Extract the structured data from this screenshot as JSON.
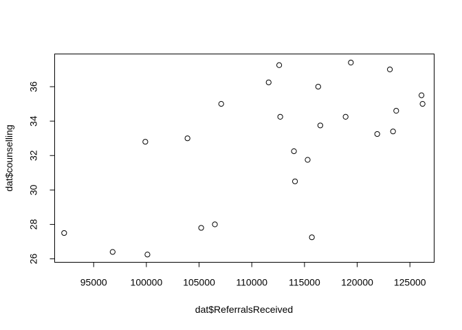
{
  "chart_data": {
    "type": "scatter",
    "title": "",
    "xlabel": "dat$ReferralsReceived",
    "ylabel": "dat$counselling",
    "xlim": [
      91300,
      127300
    ],
    "ylim": [
      25.8,
      37.9
    ],
    "xticks": [
      95000,
      100000,
      105000,
      110000,
      115000,
      120000,
      125000
    ],
    "yticks": [
      26,
      28,
      30,
      32,
      34,
      36
    ],
    "grid": false,
    "points": [
      {
        "x": 92200,
        "y": 27.5
      },
      {
        "x": 96800,
        "y": 26.4
      },
      {
        "x": 99900,
        "y": 32.8
      },
      {
        "x": 100100,
        "y": 26.25
      },
      {
        "x": 103900,
        "y": 33.0
      },
      {
        "x": 105200,
        "y": 27.8
      },
      {
        "x": 106500,
        "y": 28.0
      },
      {
        "x": 107100,
        "y": 35.0
      },
      {
        "x": 111600,
        "y": 36.25
      },
      {
        "x": 112600,
        "y": 37.25
      },
      {
        "x": 112700,
        "y": 34.25
      },
      {
        "x": 114000,
        "y": 32.25
      },
      {
        "x": 114100,
        "y": 30.5
      },
      {
        "x": 115300,
        "y": 31.75
      },
      {
        "x": 115700,
        "y": 27.25
      },
      {
        "x": 116300,
        "y": 36.0
      },
      {
        "x": 116500,
        "y": 33.75
      },
      {
        "x": 118900,
        "y": 34.25
      },
      {
        "x": 119400,
        "y": 37.4
      },
      {
        "x": 121900,
        "y": 33.25
      },
      {
        "x": 123100,
        "y": 37.0
      },
      {
        "x": 123400,
        "y": 33.4
      },
      {
        "x": 123700,
        "y": 34.6
      },
      {
        "x": 126100,
        "y": 35.5
      },
      {
        "x": 126200,
        "y": 35.0
      }
    ]
  }
}
